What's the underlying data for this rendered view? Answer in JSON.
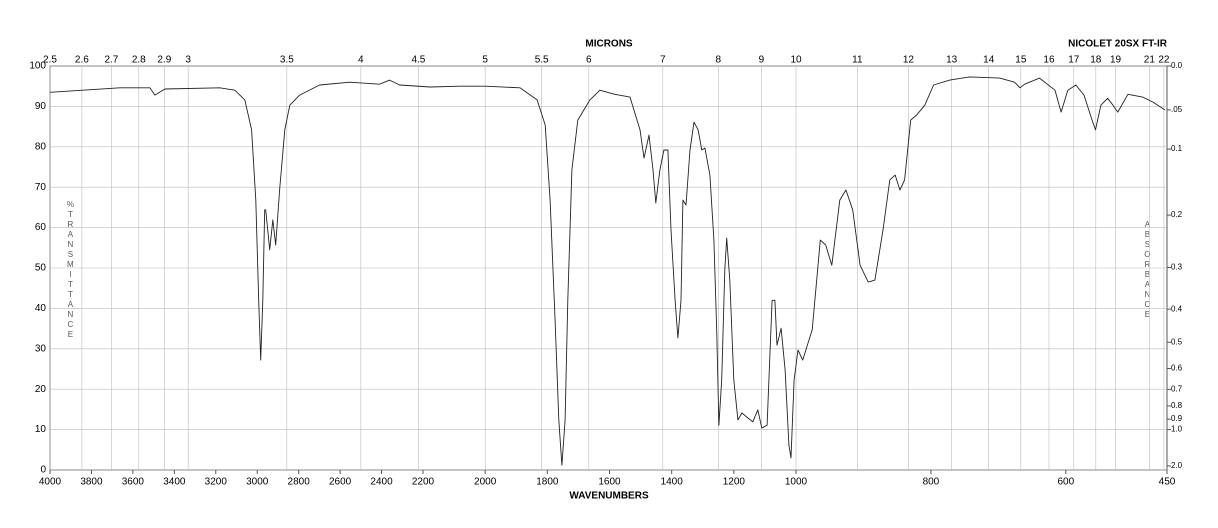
{
  "chart_data": {
    "type": "line",
    "title": "NICOLET 20SX FT-IR",
    "xlabel": "WAVENUMBERS",
    "x2label": "MICRONS",
    "ylabel": "%TRANSMITTANCE",
    "y2label": "ABSORBANCE",
    "color": "#222222",
    "grid": true,
    "xlim": [
      4000,
      450
    ],
    "x_breaks": [
      2200,
      1000
    ],
    "xticks": [
      4000,
      3800,
      3600,
      3400,
      3200,
      3000,
      2800,
      2600,
      2400,
      2200,
      2000,
      1800,
      1600,
      1400,
      1200,
      1000,
      800,
      600,
      450
    ],
    "x2ticks": [
      2.5,
      2.6,
      2.7,
      2.8,
      2.9,
      3,
      3.5,
      4,
      4.5,
      5,
      5.5,
      6,
      7,
      8,
      9,
      10,
      11,
      12,
      13,
      14,
      15,
      16,
      17,
      18,
      19,
      21,
      22
    ],
    "ylim": [
      0,
      100
    ],
    "yticks": [
      0,
      10,
      20,
      30,
      40,
      50,
      60,
      70,
      80,
      90,
      100
    ],
    "y2_scale": "absorbance",
    "y2ticks": [
      {
        "value": 0,
        "label": "0.0"
      },
      {
        "value": 0.05,
        "label": ".05"
      },
      0.1,
      0.2,
      0.3,
      0.4,
      0.5,
      0.6,
      0.7,
      0.8,
      0.9,
      {
        "value": 1,
        "label": "1.0"
      },
      {
        "value": 2,
        "label": "2.0"
      }
    ],
    "x": [
      4000,
      3663,
      3518,
      3494,
      3446,
      3181,
      3108,
      3060,
      3027,
      3007,
      2993,
      2983,
      2973,
      2964,
      2959,
      2940,
      2925,
      2911,
      2892,
      2867,
      2843,
      2795,
      2699,
      2554,
      2410,
      2361,
      2313,
      2177,
      2081,
      2000,
      1888,
      1833,
      1807,
      1791,
      1775,
      1763,
      1753,
      1743,
      1734,
      1721,
      1702,
      1663,
      1631,
      1583,
      1534,
      1502,
      1489,
      1473,
      1460,
      1451,
      1438,
      1425,
      1412,
      1402,
      1389,
      1380,
      1370,
      1364,
      1354,
      1341,
      1328,
      1315,
      1303,
      1293,
      1277,
      1264,
      1255,
      1248,
      1239,
      1229,
      1223,
      1213,
      1200,
      1187,
      1174,
      1155,
      1139,
      1123,
      1110,
      1093,
      1077,
      1068,
      1061,
      1048,
      1035,
      1023,
      1016,
      1006,
      997,
      990,
      976,
      964,
      956,
      947,
      935,
      926,
      916,
      905,
      893,
      883,
      871,
      861,
      853,
      846,
      839,
      830,
      821,
      809,
      796,
      772,
      743,
      698,
      676,
      668,
      661,
      639,
      616,
      607,
      597,
      585,
      573,
      561,
      556,
      548,
      538,
      530,
      523,
      508,
      486,
      471,
      453
    ],
    "values": [
      93.5,
      94.6,
      94.6,
      92.8,
      94.3,
      94.6,
      94,
      91.6,
      84.2,
      66.8,
      42,
      27.2,
      42,
      64.4,
      64.4,
      54.5,
      61.9,
      55.7,
      69.3,
      84.2,
      90.3,
      92.8,
      95.3,
      96,
      95.5,
      96.5,
      95.3,
      94.8,
      95,
      95,
      94.6,
      91.6,
      85.4,
      66.8,
      37,
      12.4,
      1.2,
      12.4,
      42,
      74.3,
      86.6,
      91.6,
      94,
      93,
      92.3,
      84.2,
      77.2,
      82.9,
      74.3,
      66.1,
      74.3,
      79.2,
      79.2,
      59.4,
      42,
      32.7,
      42,
      66.8,
      65.6,
      79.2,
      86.1,
      84.2,
      79.2,
      79.7,
      73,
      56.9,
      34.7,
      11.1,
      22.3,
      49.5,
      57.4,
      47,
      22.3,
      12.4,
      14.1,
      12.9,
      11.9,
      14.9,
      10.4,
      11.1,
      42,
      42,
      30.9,
      35.1,
      24.8,
      6.2,
      3,
      22.3,
      29.7,
      27.2,
      34.7,
      56.9,
      55.7,
      50.7,
      66.8,
      69.3,
      64.4,
      50.7,
      46.5,
      47,
      59.4,
      71.8,
      73,
      69.3,
      71.8,
      86.6,
      87.9,
      90.3,
      95.3,
      96.5,
      97.3,
      97,
      96,
      94.6,
      95.5,
      97,
      94,
      88.6,
      94,
      95.3,
      92.8,
      86.6,
      84.2,
      90.3,
      92,
      90.3,
      88.6,
      93,
      92.3,
      91.1,
      89.1
    ]
  }
}
